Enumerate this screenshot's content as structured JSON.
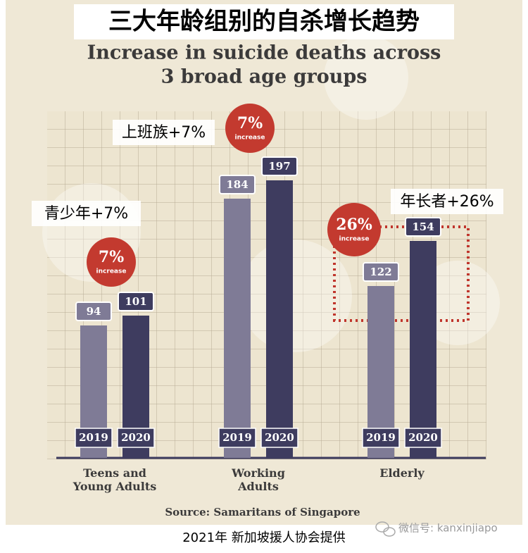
{
  "chart_data": {
    "type": "bar",
    "title_zh": "三大年龄组别的自杀增长趋势",
    "title_lines": [
      "Increase in suicide deaths across",
      "3 broad age groups"
    ],
    "categories": [
      "Teens and Young Adults",
      "Working Adults",
      "Elderly"
    ],
    "series": [
      {
        "name": "2019",
        "color": "#7f7b96",
        "values": [
          94,
          184,
          122
        ]
      },
      {
        "name": "2020",
        "color": "#3e3c5f",
        "values": [
          101,
          197,
          154
        ]
      }
    ],
    "ylim": [
      0,
      220
    ],
    "annotations": [
      {
        "text": "7%",
        "sub": "increase",
        "callout": "青少年+7%"
      },
      {
        "text": "7%",
        "sub": "increase",
        "callout": "上班族+7%"
      },
      {
        "text": "26%",
        "sub": "increase",
        "callout": "年长者+26%"
      }
    ],
    "source": "Source: Samaritans of Singapore"
  },
  "footer": "2021年 新加坡援人协会提供",
  "watermark": "微信号: kanxinjiapo"
}
